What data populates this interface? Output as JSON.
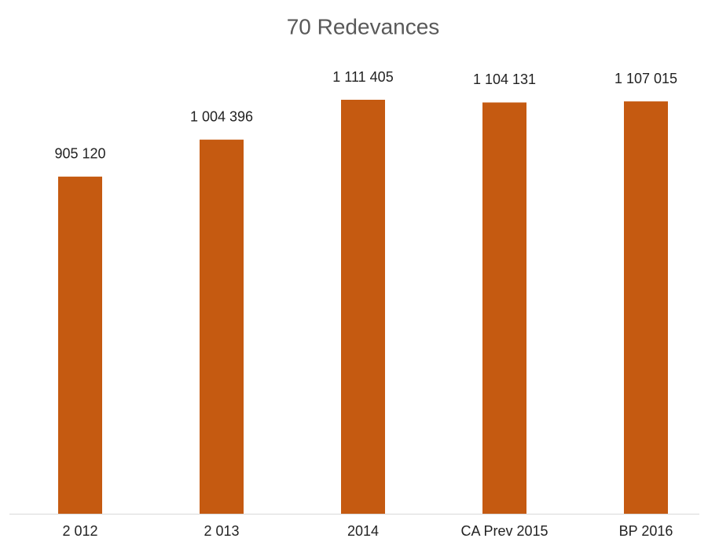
{
  "chart_data": {
    "type": "bar",
    "title": "70 Redevances",
    "categories": [
      "2 012",
      "2 013",
      "2014",
      "CA Prev 2015",
      "BP 2016"
    ],
    "values": [
      905120,
      1004396,
      1111405,
      1104131,
      1107015
    ],
    "value_labels": [
      "905 120",
      "1 004 396",
      "1 111 405",
      "1 104 131",
      "1 107 015"
    ],
    "color": "#c55a11",
    "ylim": [
      0,
      1200000
    ]
  }
}
